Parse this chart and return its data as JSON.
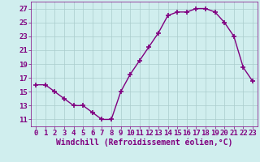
{
  "x": [
    0,
    1,
    2,
    3,
    4,
    5,
    6,
    7,
    8,
    9,
    10,
    11,
    12,
    13,
    14,
    15,
    16,
    17,
    18,
    19,
    20,
    21,
    22,
    23
  ],
  "y": [
    16,
    16,
    15,
    14,
    13,
    13,
    12,
    11,
    11,
    15,
    17.5,
    19.5,
    21.5,
    23.5,
    26,
    26.5,
    26.5,
    27,
    27,
    26.5,
    25,
    23,
    18.5,
    16.5
  ],
  "line_color": "#800080",
  "marker": "+",
  "marker_size": 5,
  "marker_lw": 1.2,
  "bg_color": "#d0eeee",
  "grid_color": "#aacccc",
  "xlabel": "Windchill (Refroidissement éolien,°C)",
  "xlabel_color": "#800080",
  "ylim": [
    10,
    28
  ],
  "xlim": [
    -0.5,
    23.5
  ],
  "yticks": [
    11,
    13,
    15,
    17,
    19,
    21,
    23,
    25,
    27
  ],
  "xticks": [
    0,
    1,
    2,
    3,
    4,
    5,
    6,
    7,
    8,
    9,
    10,
    11,
    12,
    13,
    14,
    15,
    16,
    17,
    18,
    19,
    20,
    21,
    22,
    23
  ],
  "tick_label_color": "#800080",
  "font_size": 6.5,
  "xlabel_fontsize": 7,
  "linewidth": 1.0
}
